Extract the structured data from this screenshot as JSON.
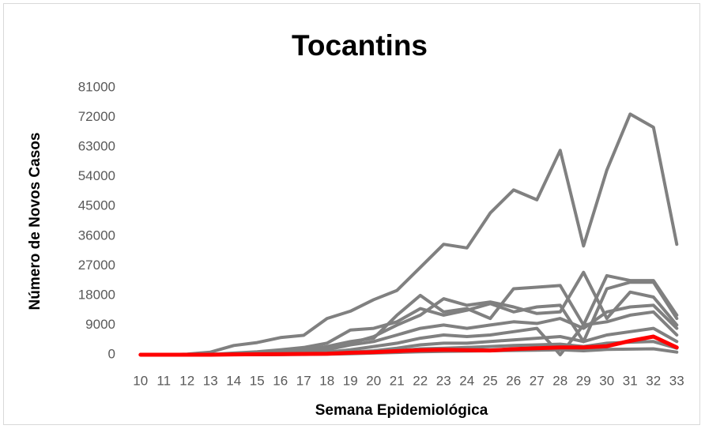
{
  "chart_data": {
    "type": "line",
    "title": "Tocantins",
    "x_label": "Semana Epidemiológica",
    "y_label": "Número de Novos Casos",
    "x": [
      10,
      11,
      12,
      13,
      14,
      15,
      16,
      17,
      18,
      19,
      20,
      21,
      22,
      23,
      24,
      25,
      26,
      27,
      28,
      29,
      30,
      31,
      32,
      33
    ],
    "xlim": [
      9.5,
      33.5
    ],
    "ylim": [
      0,
      81000
    ],
    "yticks": [
      0,
      9000,
      18000,
      27000,
      36000,
      45000,
      54000,
      63000,
      72000,
      81000
    ],
    "grid": false,
    "series": [
      {
        "color": "#808080",
        "values": [
          0,
          0,
          200,
          800,
          2800,
          3700,
          5200,
          5900,
          11000,
          13200,
          16700,
          19500,
          26500,
          33500,
          32400,
          43000,
          50000,
          47000,
          62000,
          33000,
          56000,
          73000,
          69000,
          33500
        ]
      },
      {
        "color": "#808080",
        "values": [
          0,
          0,
          0,
          100,
          500,
          900,
          1500,
          2200,
          3500,
          7500,
          8000,
          10000,
          14000,
          12000,
          13500,
          15500,
          13000,
          14500,
          15000,
          4000,
          20000,
          22000,
          22000,
          11000
        ]
      },
      {
        "color": "#808080",
        "values": [
          0,
          0,
          0,
          0,
          200,
          400,
          800,
          1500,
          2500,
          4000,
          5000,
          12000,
          18000,
          13000,
          14000,
          11000,
          20000,
          20500,
          21000,
          9000,
          24000,
          22500,
          22500,
          12000
        ]
      },
      {
        "color": "#808080",
        "values": [
          0,
          0,
          0,
          0,
          100,
          300,
          600,
          1000,
          2000,
          3500,
          5500,
          9000,
          12000,
          17000,
          15000,
          16000,
          14500,
          12500,
          13000,
          25000,
          11000,
          19000,
          17500,
          9000
        ]
      },
      {
        "color": "#808080",
        "values": [
          0,
          0,
          0,
          0,
          100,
          200,
          400,
          800,
          1500,
          3000,
          4000,
          6000,
          8000,
          9000,
          8000,
          9000,
          10000,
          9500,
          11000,
          8000,
          13000,
          14500,
          15000,
          8000
        ]
      },
      {
        "color": "#808080",
        "values": [
          0,
          0,
          0,
          0,
          0,
          100,
          200,
          400,
          800,
          1500,
          2500,
          3500,
          5000,
          6000,
          5500,
          6000,
          7000,
          8000,
          0,
          9000,
          10000,
          12000,
          13000,
          6000
        ]
      },
      {
        "color": "#808080",
        "values": [
          0,
          0,
          0,
          0,
          0,
          50,
          100,
          200,
          400,
          800,
          1200,
          2000,
          3000,
          3500,
          3500,
          4000,
          4500,
          5000,
          5500,
          4000,
          6000,
          7000,
          8000,
          4000
        ]
      },
      {
        "color": "#808080",
        "values": [
          0,
          0,
          0,
          0,
          0,
          50,
          100,
          150,
          300,
          500,
          800,
          1200,
          1800,
          2000,
          2200,
          2500,
          2800,
          3000,
          3200,
          2500,
          3500,
          3800,
          4000,
          2000
        ]
      },
      {
        "color": "#808080",
        "values": [
          0,
          0,
          0,
          0,
          0,
          0,
          50,
          100,
          200,
          300,
          500,
          700,
          900,
          1000,
          1100,
          1200,
          1300,
          1400,
          1500,
          1200,
          1600,
          1700,
          1800,
          800
        ]
      },
      {
        "color": "#ff0000",
        "values": [
          0,
          0,
          0,
          0,
          100,
          150,
          200,
          250,
          300,
          600,
          800,
          1100,
          1400,
          1500,
          1400,
          1300,
          1700,
          2000,
          2200,
          2200,
          2600,
          4200,
          5500,
          2200
        ]
      }
    ]
  }
}
